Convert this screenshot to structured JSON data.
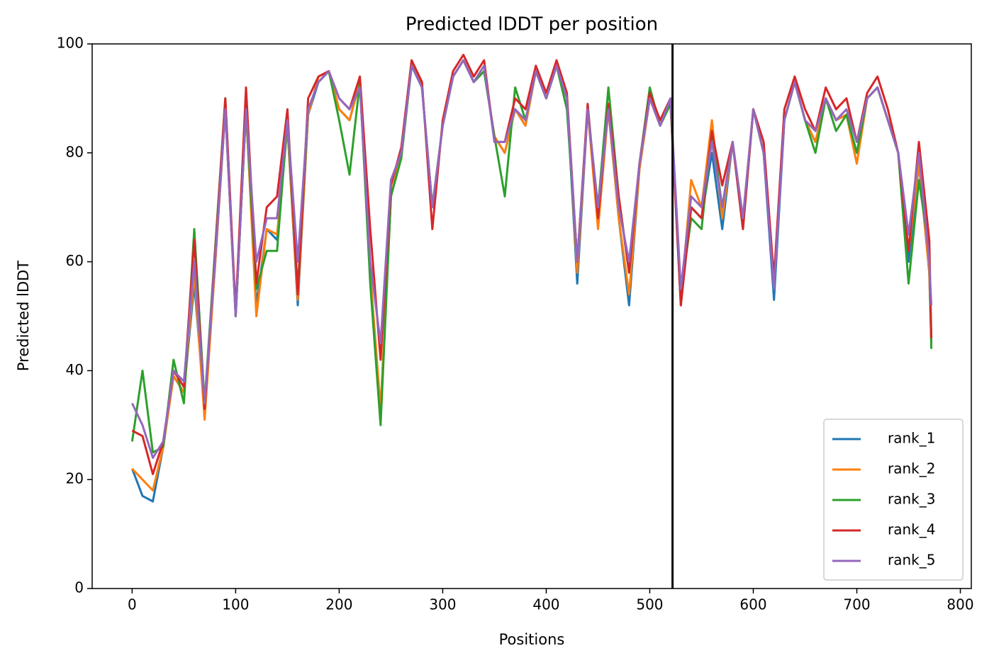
{
  "chart_data": {
    "type": "line",
    "title": "Predicted lDDT per position",
    "x_label": "Positions",
    "y_label": "Predicted lDDT",
    "x": [
      0,
      10,
      20,
      30,
      40,
      50,
      60,
      70,
      80,
      90,
      100,
      110,
      120,
      130,
      140,
      150,
      160,
      170,
      180,
      190,
      200,
      210,
      220,
      230,
      240,
      250,
      260,
      270,
      280,
      290,
      300,
      310,
      320,
      330,
      340,
      350,
      360,
      370,
      380,
      390,
      400,
      410,
      420,
      430,
      440,
      450,
      460,
      470,
      480,
      490,
      500,
      510,
      520,
      530,
      540,
      550,
      560,
      570,
      580,
      590,
      600,
      610,
      620,
      630,
      640,
      650,
      660,
      670,
      680,
      690,
      700,
      710,
      720,
      730,
      740,
      750,
      760,
      770,
      772
    ],
    "series": [
      {
        "name": "rank_1",
        "color": "#1f77b4",
        "values": [
          22,
          17,
          16,
          26,
          39,
          36,
          56,
          33,
          59,
          88,
          50,
          88,
          52,
          66,
          64,
          85,
          52,
          87,
          93,
          95,
          88,
          86,
          93,
          58,
          32,
          72,
          80,
          96,
          92,
          70,
          85,
          94,
          97,
          93,
          95,
          83,
          80,
          88,
          85,
          95,
          90,
          96,
          90,
          56,
          88,
          68,
          88,
          68,
          52,
          77,
          90,
          85,
          89,
          52,
          70,
          68,
          80,
          66,
          82,
          67,
          88,
          80,
          53,
          86,
          93,
          86,
          82,
          90,
          86,
          87,
          80,
          90,
          92,
          86,
          80,
          60,
          78,
          58,
          45
        ]
      },
      {
        "name": "rank_2",
        "color": "#ff7f0e",
        "values": [
          22,
          20,
          18,
          26,
          39,
          36,
          58,
          31,
          59,
          88,
          50,
          88,
          50,
          66,
          65,
          85,
          53,
          87,
          94,
          95,
          88,
          86,
          93,
          58,
          33,
          72,
          80,
          97,
          92,
          70,
          85,
          94,
          97,
          93,
          95,
          83,
          80,
          88,
          85,
          95,
          90,
          96,
          90,
          58,
          88,
          66,
          88,
          68,
          54,
          77,
          90,
          85,
          89,
          53,
          75,
          70,
          86,
          68,
          82,
          68,
          88,
          80,
          56,
          86,
          93,
          86,
          82,
          90,
          86,
          87,
          78,
          90,
          92,
          86,
          80,
          62,
          78,
          58,
          46
        ]
      },
      {
        "name": "rank_3",
        "color": "#2ca02c",
        "values": [
          27,
          40,
          25,
          26,
          42,
          34,
          66,
          34,
          62,
          90,
          50,
          88,
          55,
          62,
          62,
          86,
          55,
          88,
          93,
          95,
          86,
          76,
          93,
          56,
          30,
          72,
          79,
          96,
          92,
          70,
          85,
          94,
          97,
          93,
          95,
          83,
          72,
          92,
          86,
          95,
          90,
          96,
          88,
          60,
          88,
          70,
          92,
          72,
          58,
          78,
          92,
          85,
          89,
          54,
          68,
          66,
          84,
          70,
          82,
          66,
          88,
          80,
          56,
          86,
          93,
          86,
          80,
          90,
          84,
          87,
          80,
          90,
          92,
          86,
          80,
          56,
          75,
          62,
          44
        ]
      },
      {
        "name": "rank_4",
        "color": "#d62728",
        "values": [
          29,
          28,
          21,
          27,
          40,
          37,
          64,
          33,
          61,
          90,
          51,
          92,
          56,
          70,
          72,
          88,
          54,
          90,
          94,
          95,
          90,
          88,
          94,
          66,
          42,
          74,
          81,
          97,
          93,
          66,
          86,
          95,
          98,
          94,
          97,
          82,
          82,
          90,
          88,
          96,
          91,
          97,
          91,
          60,
          89,
          68,
          89,
          72,
          58,
          78,
          91,
          86,
          90,
          52,
          70,
          68,
          84,
          74,
          82,
          66,
          88,
          82,
          57,
          88,
          94,
          88,
          84,
          92,
          88,
          90,
          82,
          91,
          94,
          88,
          80,
          62,
          82,
          64,
          46
        ]
      },
      {
        "name": "rank_5",
        "color": "#9467bd",
        "values": [
          34,
          30,
          24,
          27,
          40,
          38,
          60,
          34,
          60,
          88,
          50,
          88,
          60,
          68,
          68,
          86,
          60,
          88,
          93,
          95,
          90,
          88,
          92,
          60,
          45,
          75,
          80,
          96,
          92,
          70,
          85,
          94,
          97,
          93,
          96,
          82,
          82,
          88,
          86,
          95,
          90,
          96,
          90,
          60,
          88,
          70,
          88,
          70,
          60,
          78,
          90,
          85,
          90,
          55,
          72,
          70,
          82,
          70,
          82,
          68,
          88,
          80,
          55,
          86,
          93,
          86,
          84,
          90,
          86,
          88,
          82,
          90,
          92,
          86,
          80,
          65,
          80,
          60,
          52
        ]
      }
    ],
    "vline": {
      "x": 522,
      "color": "#000000"
    },
    "xlim": [
      -38.6,
      810.6
    ],
    "ylim": [
      0,
      100
    ],
    "xticks": [
      0,
      100,
      200,
      300,
      400,
      500,
      600,
      700,
      800
    ],
    "yticks": [
      0,
      20,
      40,
      60,
      80,
      100
    ],
    "legend": "lower right"
  }
}
